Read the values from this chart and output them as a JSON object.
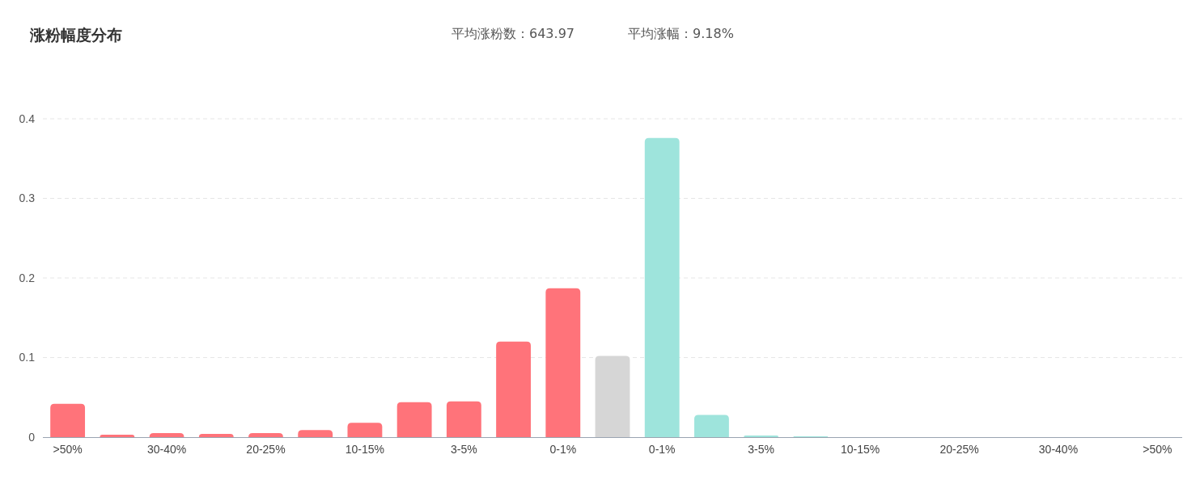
{
  "chart_data": {
    "type": "bar",
    "title": "涨粉幅度分布",
    "annotations": [
      "平均涨粉数：643.97",
      "平均涨幅：9.18%"
    ],
    "categories": [
      ">50%",
      null,
      "30-40%",
      null,
      "20-25%",
      null,
      "10-15%",
      null,
      "3-5%",
      null,
      "0-1%",
      null,
      "0-1%",
      null,
      "3-5%",
      null,
      "10-15%",
      null,
      "20-25%",
      null,
      "30-40%",
      null,
      ">50%"
    ],
    "values": [
      0.042,
      0.003,
      0.005,
      0.004,
      0.005,
      0.009,
      0.018,
      0.044,
      0.045,
      0.12,
      0.187,
      0.102,
      0.376,
      0.028,
      0.002,
      0.001,
      0,
      0,
      0,
      0,
      0,
      0,
      0
    ],
    "colors": [
      "#ff737a",
      "#ff737a",
      "#ff737a",
      "#ff737a",
      "#ff737a",
      "#ff737a",
      "#ff737a",
      "#ff737a",
      "#ff737a",
      "#ff737a",
      "#ff737a",
      "#d6d6d6",
      "#9ee4dc",
      "#9ee4dc",
      "#9ee4dc",
      "#9ee4dc",
      "#9ee4dc",
      "#9ee4dc",
      "#9ee4dc",
      "#9ee4dc",
      "#9ee4dc",
      "#9ee4dc",
      "#9ee4dc"
    ],
    "ylim": [
      0,
      0.4
    ],
    "yticks": [
      0,
      0.1,
      0.2,
      0.3,
      0.4
    ],
    "grid": "y"
  }
}
